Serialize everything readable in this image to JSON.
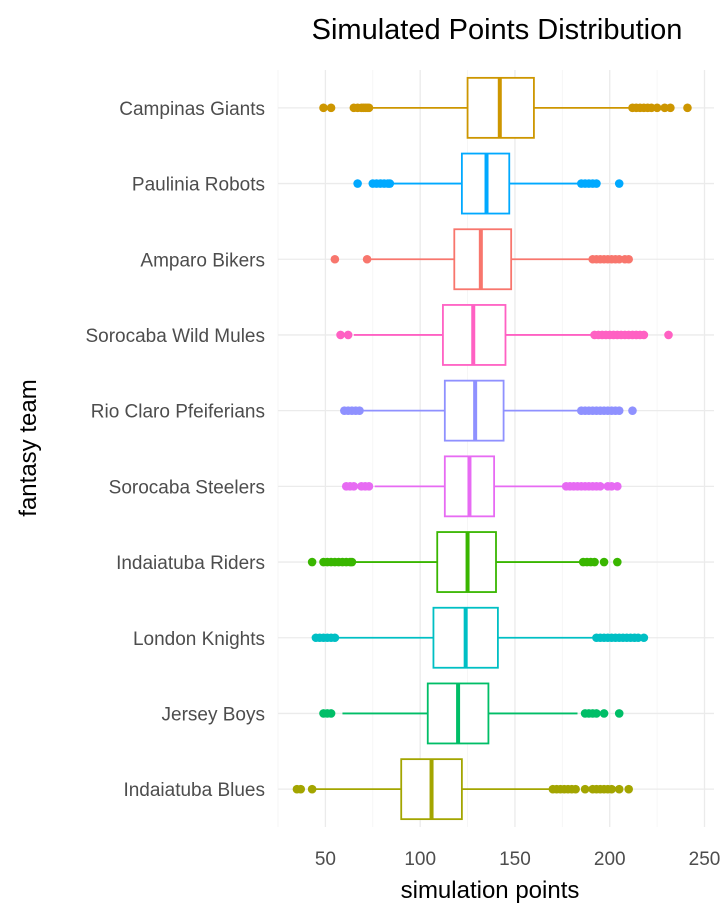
{
  "chart_data": {
    "type": "boxplot",
    "title": "Simulated Points Distribution",
    "xlabel": "simulation points",
    "ylabel": "fantasy team",
    "xlim": [
      25,
      255
    ],
    "xticks": [
      50,
      100,
      150,
      200,
      250
    ],
    "orientation": "horizontal",
    "grid": true,
    "legend": "none",
    "series": [
      {
        "name": "Campinas Giants",
        "color": "#CD9600",
        "whisker_low": 75,
        "q1": 125,
        "median": 142,
        "q3": 160,
        "whisker_high": 211,
        "outliers": [
          49,
          53,
          65,
          67,
          69,
          70,
          71,
          72,
          73,
          212,
          214,
          216,
          218,
          220,
          222,
          225,
          229,
          232,
          241
        ]
      },
      {
        "name": "Paulinia Robots",
        "color": "#00A9FF",
        "whisker_low": 86,
        "q1": 122,
        "median": 135,
        "q3": 147,
        "whisker_high": 183,
        "outliers": [
          67,
          75,
          77,
          79,
          81,
          83,
          84,
          185,
          187,
          189,
          191,
          193,
          205
        ]
      },
      {
        "name": "Amparo Bikers",
        "color": "#F8766D",
        "whisker_low": 74,
        "q1": 118,
        "median": 132,
        "q3": 148,
        "whisker_high": 190,
        "outliers": [
          55,
          72,
          191,
          193,
          195,
          197,
          199,
          201,
          203,
          205,
          208,
          210
        ]
      },
      {
        "name": "Sorocaba Wild Mules",
        "color": "#FF61C3",
        "whisker_low": 65,
        "q1": 112,
        "median": 128,
        "q3": 145,
        "whisker_high": 191,
        "outliers": [
          58,
          62,
          192,
          194,
          196,
          198,
          200,
          202,
          204,
          206,
          208,
          210,
          212,
          214,
          216,
          218,
          231
        ]
      },
      {
        "name": "Rio Claro Pfeiferians",
        "color": "#8F91FF",
        "whisker_low": 69,
        "q1": 113,
        "median": 129,
        "q3": 144,
        "whisker_high": 183,
        "outliers": [
          60,
          62,
          64,
          66,
          68,
          185,
          187,
          189,
          191,
          193,
          195,
          197,
          199,
          201,
          203,
          205,
          212
        ]
      },
      {
        "name": "Sorocaba Steelers",
        "color": "#E76BF3",
        "whisker_low": 76,
        "q1": 113,
        "median": 126,
        "q3": 139,
        "whisker_high": 176,
        "outliers": [
          61,
          63,
          65,
          69,
          71,
          73,
          177,
          179,
          181,
          183,
          185,
          187,
          189,
          191,
          193,
          195,
          199,
          201,
          204
        ]
      },
      {
        "name": "Indaiatuba Riders",
        "color": "#39B600",
        "whisker_low": 65,
        "q1": 109,
        "median": 125,
        "q3": 140,
        "whisker_high": 185,
        "outliers": [
          43,
          49,
          51,
          53,
          55,
          57,
          59,
          61,
          63,
          64,
          186,
          188,
          190,
          192,
          197,
          204
        ]
      },
      {
        "name": "London Knights",
        "color": "#00BFC4",
        "whisker_low": 56,
        "q1": 107,
        "median": 124,
        "q3": 141,
        "whisker_high": 191,
        "outliers": [
          45,
          47,
          49,
          51,
          53,
          55,
          193,
          195,
          197,
          199,
          201,
          203,
          205,
          207,
          209,
          211,
          213,
          215,
          218
        ]
      },
      {
        "name": "Jersey Boys",
        "color": "#00BE67",
        "whisker_low": 59,
        "q1": 104,
        "median": 120,
        "q3": 136,
        "whisker_high": 183,
        "outliers": [
          49,
          51,
          53,
          187,
          189,
          191,
          193,
          197,
          205
        ]
      },
      {
        "name": "Indaiatuba Blues",
        "color": "#A3A500",
        "whisker_low": 45,
        "q1": 90,
        "median": 106,
        "q3": 122,
        "whisker_high": 168,
        "outliers": [
          35,
          37,
          43,
          170,
          172,
          174,
          176,
          178,
          180,
          182,
          187,
          191,
          193,
          195,
          197,
          199,
          201,
          205,
          210
        ]
      }
    ]
  }
}
